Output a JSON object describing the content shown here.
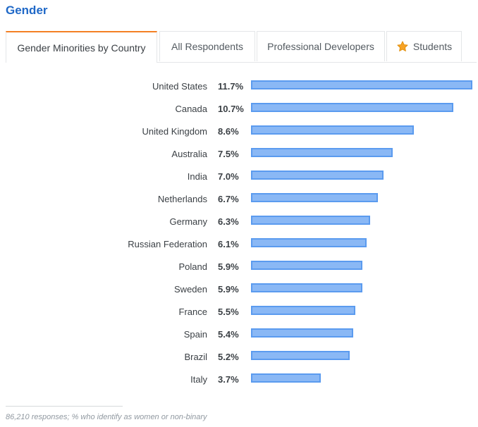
{
  "section": {
    "title": "Gender"
  },
  "tabs": [
    {
      "label": "Gender Minorities by Country",
      "active": true
    },
    {
      "label": "All Respondents",
      "active": false
    },
    {
      "label": "Professional Developers",
      "active": false
    },
    {
      "label": "Students",
      "active": false,
      "icon": "star-icon"
    }
  ],
  "colors": {
    "title": "#1f68c7",
    "active_tab_accent": "#f48024",
    "bar_fill": "#8ab8f5",
    "bar_border": "#5b9bef",
    "star": "#f7a325"
  },
  "chart_data": {
    "type": "bar",
    "orientation": "horizontal",
    "categories": [
      "United States",
      "Canada",
      "United Kingdom",
      "Australia",
      "India",
      "Netherlands",
      "Germany",
      "Russian Federation",
      "Poland",
      "Sweden",
      "France",
      "Spain",
      "Brazil",
      "Italy"
    ],
    "values": [
      11.7,
      10.7,
      8.6,
      7.5,
      7.0,
      6.7,
      6.3,
      6.1,
      5.9,
      5.9,
      5.5,
      5.4,
      5.2,
      3.7
    ],
    "labels": [
      "11.7%",
      "10.7%",
      "8.6%",
      "7.5%",
      "7.0%",
      "6.7%",
      "6.3%",
      "6.1%",
      "5.9%",
      "5.9%",
      "5.5%",
      "5.4%",
      "5.2%",
      "3.7%"
    ],
    "xlim": [
      0,
      11.7
    ],
    "grid": false,
    "legend": "none"
  },
  "footnote": "86,210 responses; % who identify as women or non-binary"
}
